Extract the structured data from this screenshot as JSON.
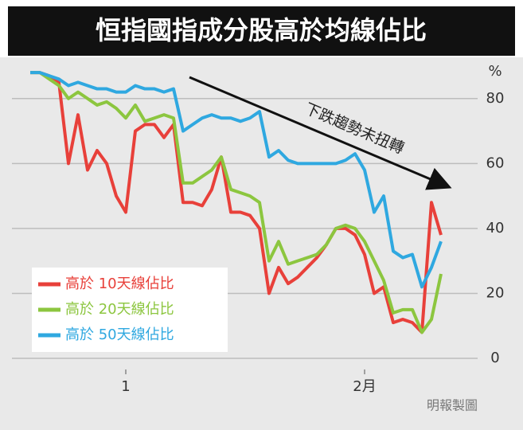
{
  "chart_data": {
    "type": "line",
    "title": "恒指國指成分股高於均線佔比",
    "y_unit": "%",
    "annotation": "下跌趨勢未扭轉",
    "source": "明報製圖",
    "categories": [
      null,
      null,
      null,
      null,
      null,
      null,
      null,
      null,
      null,
      null,
      "1",
      null,
      null,
      null,
      null,
      null,
      null,
      null,
      null,
      null,
      null,
      null,
      null,
      null,
      null,
      null,
      null,
      null,
      null,
      null,
      null,
      null,
      null,
      null,
      null,
      "2月",
      null,
      null,
      null,
      null,
      null,
      null,
      null,
      null
    ],
    "ylim": [
      0,
      90
    ],
    "yticks": [
      0,
      20,
      40,
      60,
      80
    ],
    "grid": true,
    "y_axis_side": "right",
    "legend": "lower left",
    "series": [
      {
        "name": "高於 10天線佔比",
        "color": "#e8403a",
        "values": [
          88,
          88,
          87,
          85,
          60,
          75,
          58,
          64,
          60,
          50,
          45,
          70,
          72,
          72,
          68,
          72,
          48,
          48,
          47,
          52,
          62,
          45,
          45,
          44,
          40,
          20,
          28,
          23,
          25,
          28,
          31,
          35,
          40,
          40,
          38,
          32,
          20,
          22,
          11,
          12,
          11,
          8,
          48,
          38
        ]
      },
      {
        "name": "高於 20天線佔比",
        "color": "#8cc63f",
        "values": [
          88,
          88,
          86,
          84,
          80,
          82,
          80,
          78,
          79,
          77,
          74,
          78,
          73,
          74,
          75,
          74,
          54,
          54,
          56,
          58,
          62,
          52,
          51,
          50,
          48,
          30,
          36,
          29,
          30,
          31,
          32,
          35,
          40,
          41,
          40,
          36,
          30,
          24,
          14,
          15,
          15,
          8,
          12,
          26
        ]
      },
      {
        "name": "高於 50天線佔比",
        "color": "#2fa8e0",
        "values": [
          88,
          88,
          87,
          86,
          84,
          85,
          84,
          83,
          83,
          82,
          82,
          84,
          83,
          83,
          82,
          83,
          70,
          72,
          74,
          75,
          74,
          74,
          73,
          74,
          76,
          62,
          64,
          61,
          60,
          60,
          60,
          60,
          60,
          61,
          63,
          58,
          45,
          50,
          33,
          31,
          32,
          22,
          28,
          36
        ]
      }
    ]
  }
}
